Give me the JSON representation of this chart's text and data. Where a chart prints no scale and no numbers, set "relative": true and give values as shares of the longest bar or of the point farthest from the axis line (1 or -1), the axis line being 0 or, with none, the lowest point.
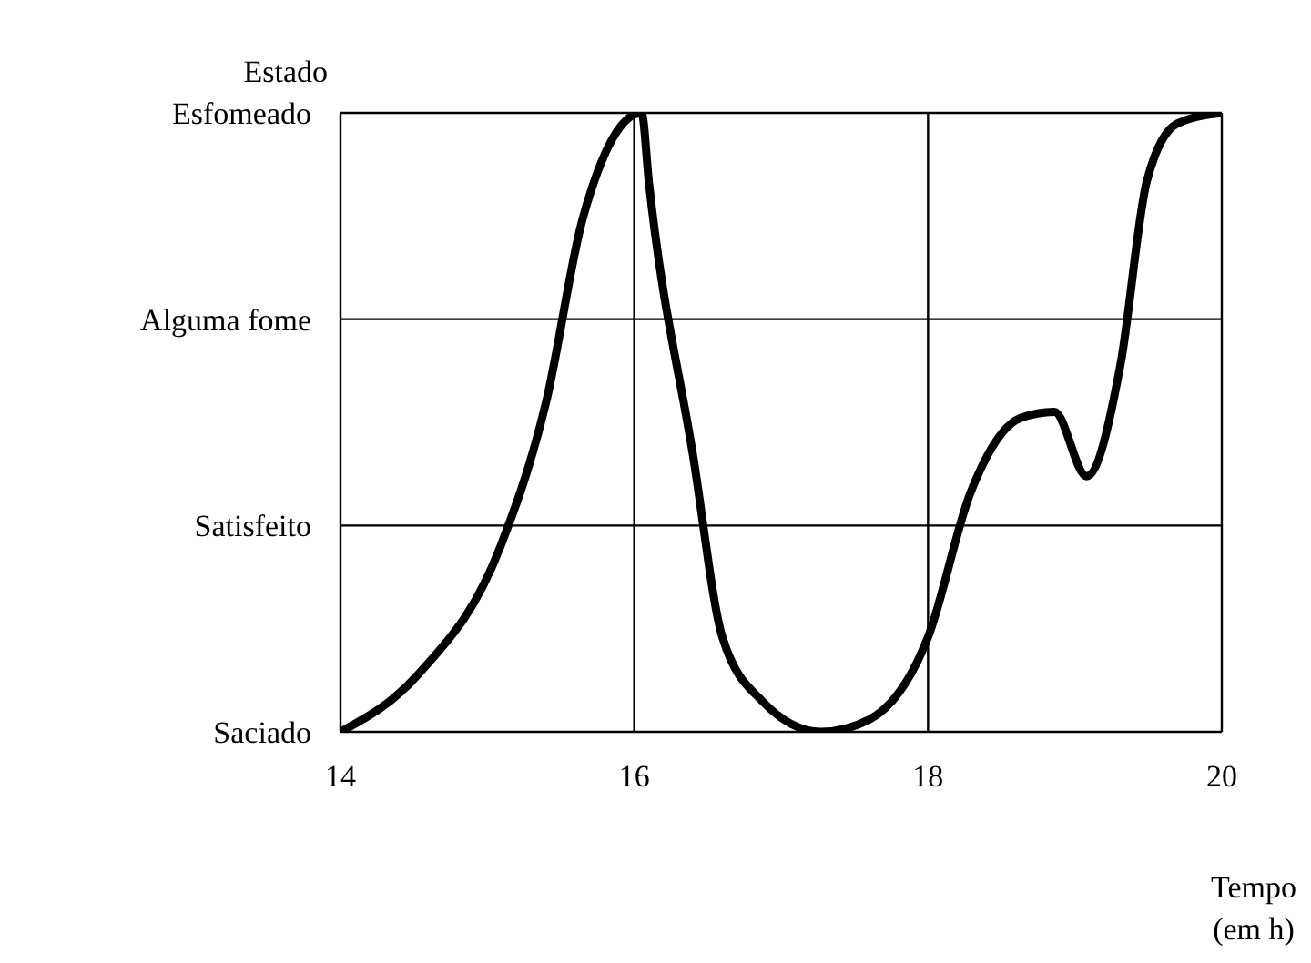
{
  "chart_data": {
    "type": "line",
    "xlabel": "Tempo\n(em h)",
    "ylabel": "Estado",
    "relative": true,
    "x": [
      14,
      14.53,
      15.09,
      15.4,
      15.65,
      16.05,
      16.1,
      16.4,
      16.6,
      16.87,
      17.27,
      17.6,
      18,
      18.29,
      18.63,
      18.86,
      19.08,
      19.31,
      19.49,
      19.7,
      20
    ],
    "series": [
      {
        "color": "#000000",
        "values": [
          0,
          0.093,
          0.3,
          0.533,
          0.83,
          1,
          0.887,
          0.447,
          0.153,
          0.05,
          0,
          0.02,
          0.153,
          0.387,
          0.507,
          0.517,
          0.413,
          0.593,
          0.89,
          0.983,
          1
        ]
      }
    ],
    "xlim": [
      14,
      20
    ],
    "xticks": [
      14,
      16,
      18,
      20
    ],
    "annotations": [
      "Saciado",
      "Satisfeito",
      "Alguma fome",
      "Esfomeado"
    ],
    "grid": true,
    "marker": "none",
    "line_style": "solid"
  }
}
